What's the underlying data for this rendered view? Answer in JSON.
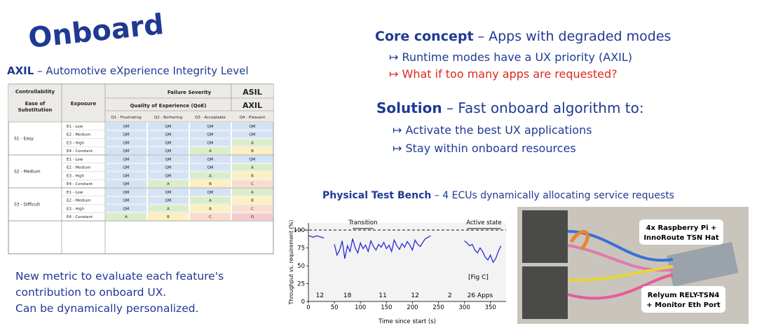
{
  "title": "Onboard",
  "axil": {
    "term": "AXIL",
    "desc": " – Automotive eXperience Integrity Level"
  },
  "table": {
    "header": {
      "controllability": "Controllability",
      "ease": [
        "Ease of",
        "Substitution"
      ],
      "exposure": "Exposure",
      "severity": "Failure Severity",
      "asil": "ASIL",
      "qoe": "Quality of Experience (QoE)",
      "axil": "AXIL",
      "levels": [
        "Q1 - Frustrating",
        "Q2 - Bothering",
        "Q3 - Acceptable",
        "Q4 - Pleasant"
      ]
    },
    "groups": [
      {
        "label": "S1 - Easy",
        "rows": [
          {
            "exposure": "E1 - Low",
            "cells": [
              "QM",
              "QM",
              "QM",
              "QM"
            ]
          },
          {
            "exposure": "E2 - Medium",
            "cells": [
              "QM",
              "QM",
              "QM",
              "QM"
            ]
          },
          {
            "exposure": "E3 - High",
            "cells": [
              "QM",
              "QM",
              "QM",
              "A"
            ]
          },
          {
            "exposure": "E4 - Constant",
            "cells": [
              "QM",
              "QM",
              "A",
              "B"
            ]
          }
        ]
      },
      {
        "label": "S2 - Medium",
        "rows": [
          {
            "exposure": "E1 - Low",
            "cells": [
              "QM",
              "QM",
              "QM",
              "QM"
            ]
          },
          {
            "exposure": "E2 - Medium",
            "cells": [
              "QM",
              "QM",
              "QM",
              "A"
            ]
          },
          {
            "exposure": "E3 - High",
            "cells": [
              "QM",
              "QM",
              "A",
              "B"
            ]
          },
          {
            "exposure": "E4 - Constant",
            "cells": [
              "QM",
              "A",
              "B",
              "C"
            ]
          }
        ]
      },
      {
        "label": "S3 - Difficult",
        "rows": [
          {
            "exposure": "E1 - Low",
            "cells": [
              "QM",
              "QM",
              "QM",
              "A"
            ]
          },
          {
            "exposure": "E2 - Medium",
            "cells": [
              "QM",
              "QM",
              "A",
              "B"
            ]
          },
          {
            "exposure": "E3 - High",
            "cells": [
              "QM",
              "A",
              "B",
              "C"
            ]
          },
          {
            "exposure": "E4 - Constant",
            "cells": [
              "A",
              "B",
              "C",
              "D"
            ]
          }
        ]
      }
    ],
    "grade_colors": {
      "QM": "#d3e2f4",
      "A": "#d9edc9",
      "B": "#fcefc0",
      "C": "#f9dccb",
      "D": "#f5cccc"
    }
  },
  "notes": [
    "New metric to evaluate each feature's",
    "contribution to onboard UX.",
    "Can be dynamically personalized."
  ],
  "core": {
    "term": "Core concept",
    "desc": " – Apps with degraded modes",
    "bullets": [
      "↦ Runtime modes have a UX priority (AXIL)",
      "↦ What if too many apps are requested?"
    ]
  },
  "solution": {
    "term": "Solution",
    "desc": " – Fast onboard algorithm to:",
    "bullets": [
      "↦ Activate the best UX applications",
      "↦ Stay within onboard resources"
    ]
  },
  "bench": {
    "term": "Physical Test Bench",
    "desc": " – 4 ECUs dynamically allocating service requests"
  },
  "figure": {
    "type": "line",
    "xlabel": "Time since start (s)",
    "ylabel": "Throughput vs. requirement (%)",
    "xlim": [
      0,
      380
    ],
    "ylim": [
      0,
      110
    ],
    "xticks": [
      0,
      50,
      100,
      150,
      200,
      250,
      300,
      350
    ],
    "yticks": [
      0,
      25,
      50,
      75,
      100
    ],
    "reference": 100,
    "x": [
      0,
      5,
      10,
      15,
      20,
      25,
      30,
      40,
      50,
      55,
      60,
      65,
      70,
      75,
      80,
      85,
      90,
      95,
      100,
      105,
      110,
      115,
      120,
      125,
      130,
      135,
      140,
      145,
      150,
      155,
      160,
      165,
      170,
      175,
      180,
      185,
      190,
      195,
      200,
      205,
      210,
      215,
      220,
      225,
      230,
      235,
      270,
      300,
      305,
      310,
      315,
      320,
      325,
      330,
      335,
      340,
      345,
      350,
      355,
      360,
      365,
      370
    ],
    "values": [
      92,
      91,
      90,
      92,
      91,
      90,
      89,
      null,
      80,
      65,
      72,
      85,
      60,
      78,
      70,
      88,
      75,
      68,
      82,
      74,
      79,
      70,
      85,
      77,
      72,
      80,
      76,
      83,
      74,
      79,
      70,
      86,
      78,
      73,
      81,
      76,
      84,
      79,
      72,
      86,
      80,
      77,
      83,
      88,
      90,
      92,
      null,
      85,
      82,
      78,
      80,
      72,
      68,
      75,
      70,
      62,
      58,
      65,
      55,
      60,
      70,
      78
    ],
    "color": "#2b2bd6",
    "segment_labels": [
      {
        "x": 22,
        "label": "12"
      },
      {
        "x": 75,
        "label": "18"
      },
      {
        "x": 143,
        "label": "11"
      },
      {
        "x": 205,
        "label": "12"
      },
      {
        "x": 272,
        "label": "2"
      },
      {
        "x": 330,
        "label": "26 Apps"
      }
    ],
    "annotations": [
      {
        "text": "Transition",
        "x": [
          85,
          125
        ]
      },
      {
        "text": "Active state",
        "x": [
          305,
          370
        ]
      }
    ],
    "fig_label": "[Fig C]"
  },
  "photo": {
    "labels": [
      [
        "4x Raspberry Pi +",
        "InnoRoute TSN Hat"
      ],
      [
        "Relyum RELY-TSN4",
        "+ Monitor Eth Port"
      ]
    ]
  }
}
